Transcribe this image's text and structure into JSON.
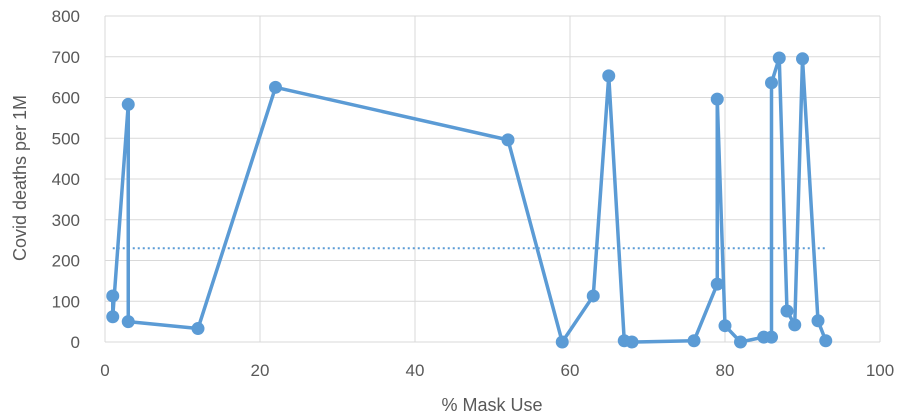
{
  "chart_data": {
    "type": "scatter",
    "title": "",
    "xlabel": "% Mask Use",
    "ylabel": "Covid deaths per 1M",
    "xlim": [
      0,
      100
    ],
    "ylim": [
      0,
      800
    ],
    "xticks": [
      0,
      20,
      40,
      60,
      80,
      100
    ],
    "yticks": [
      0,
      100,
      200,
      300,
      400,
      500,
      600,
      700,
      800
    ],
    "grid": true,
    "legend": "none",
    "series_color": "#5b9bd5",
    "trend_color": "#5b9bd5",
    "series": [
      {
        "points": [
          [
            1,
            113
          ],
          [
            1,
            62
          ],
          [
            3,
            583
          ],
          [
            3,
            50
          ],
          [
            12,
            33
          ],
          [
            22,
            625
          ],
          [
            52,
            496
          ],
          [
            59,
            0
          ],
          [
            63,
            113
          ],
          [
            65,
            653
          ],
          [
            67,
            3
          ],
          [
            68,
            0
          ],
          [
            76,
            3
          ],
          [
            79,
            142
          ],
          [
            79,
            596
          ],
          [
            80,
            40
          ],
          [
            82,
            0
          ],
          [
            85,
            12
          ],
          [
            86,
            12
          ],
          [
            86,
            636
          ],
          [
            87,
            697
          ],
          [
            88,
            76
          ],
          [
            89,
            42
          ],
          [
            90,
            695
          ],
          [
            92,
            52
          ],
          [
            93,
            3
          ]
        ]
      }
    ],
    "trendline": {
      "type": "average",
      "y": 230,
      "x_range": [
        1,
        93
      ]
    }
  }
}
